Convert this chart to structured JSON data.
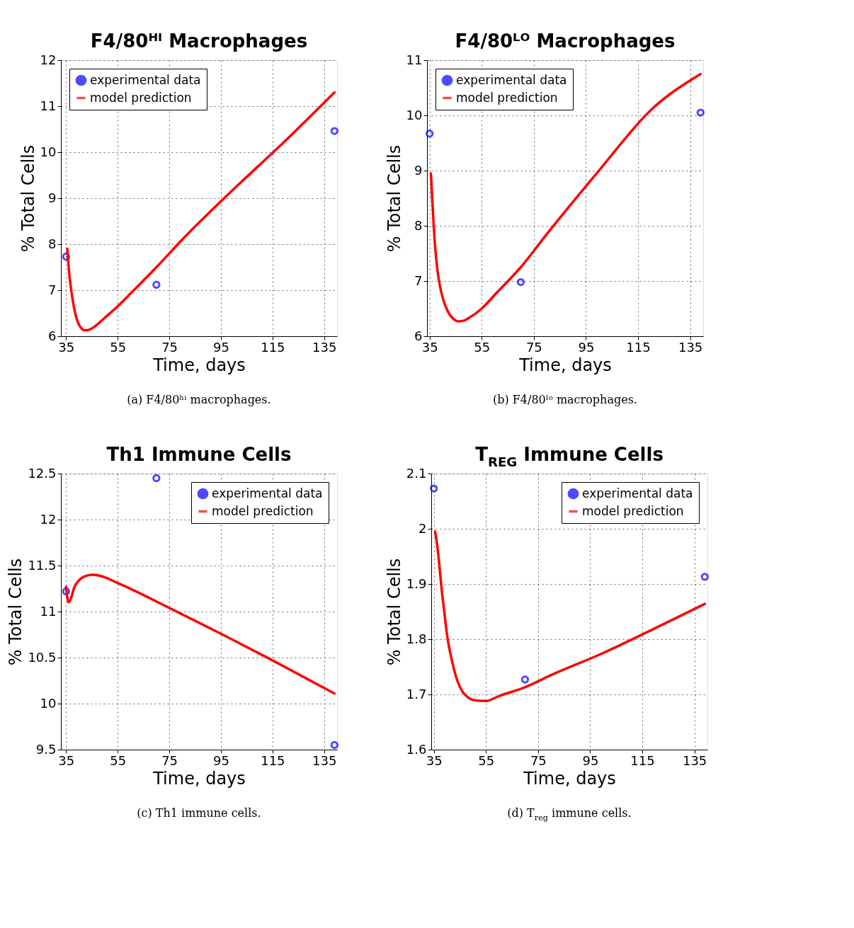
{
  "chart_data": [
    {
      "type": "line",
      "title": "F4/80ᴴᴵ Macrophages",
      "xlabel": "Time, days",
      "ylabel": "% Total Cells",
      "xlim": [
        33,
        140
      ],
      "ylim": [
        6,
        12
      ],
      "xticks": [
        35,
        55,
        75,
        95,
        115,
        135
      ],
      "yticks": [
        6,
        7,
        8,
        9,
        10,
        11,
        12
      ],
      "grid": true,
      "legend": "top left",
      "annotations": [
        "(a) F4/80ʰⁱ macrophages."
      ],
      "series": [
        {
          "name": "experimental data",
          "type": "scatter",
          "marker": "circle",
          "color": "#0000ff",
          "x": [
            35,
            70,
            139
          ],
          "values": [
            7.73,
            7.12,
            10.46
          ]
        },
        {
          "name": "model prediction",
          "marker": "none",
          "color": "#ff0000",
          "x": [
            35.5,
            36,
            37,
            38,
            39,
            40,
            41,
            42,
            43,
            45,
            47,
            50,
            55,
            60,
            70,
            80,
            100,
            120,
            139
          ],
          "values": [
            7.9,
            7.5,
            7.0,
            6.65,
            6.4,
            6.25,
            6.17,
            6.13,
            6.13,
            6.17,
            6.25,
            6.4,
            6.65,
            6.93,
            7.5,
            8.1,
            9.2,
            10.25,
            11.3
          ]
        }
      ]
    },
    {
      "type": "line",
      "title": "F4/80ᴸᴼ Macrophages",
      "xlabel": "Time, days",
      "ylabel": "% Total Cells",
      "xlim": [
        34,
        140
      ],
      "ylim": [
        6,
        11
      ],
      "xticks": [
        35,
        55,
        75,
        95,
        115,
        135
      ],
      "yticks": [
        6,
        7,
        8,
        9,
        10,
        11
      ],
      "grid": true,
      "legend": "top left",
      "annotations": [
        "(b) F4/80ˡᵒ macrophages."
      ],
      "series": [
        {
          "name": "experimental data",
          "type": "scatter",
          "marker": "circle",
          "color": "#0000ff",
          "x": [
            35,
            70,
            139
          ],
          "values": [
            9.67,
            6.98,
            10.05
          ]
        },
        {
          "name": "model prediction",
          "marker": "none",
          "color": "#ff0000",
          "x": [
            35.5,
            36,
            37,
            38,
            39,
            40,
            42,
            44,
            46,
            48,
            50,
            55,
            60,
            70,
            80,
            100,
            120,
            139
          ],
          "values": [
            8.95,
            8.5,
            7.7,
            7.2,
            6.9,
            6.7,
            6.45,
            6.32,
            6.27,
            6.28,
            6.33,
            6.5,
            6.75,
            7.25,
            7.85,
            9.0,
            10.1,
            10.75
          ]
        }
      ]
    },
    {
      "type": "line",
      "title": "Th1 Immune Cells",
      "xlabel": "Time, days",
      "ylabel": "% Total Cells",
      "xlim": [
        33,
        140
      ],
      "ylim": [
        9.5,
        12.5
      ],
      "xticks": [
        35,
        55,
        75,
        95,
        115,
        135
      ],
      "yticks": [
        9.5,
        10,
        10.5,
        11,
        11.5,
        12,
        12.5
      ],
      "grid": true,
      "legend": "top right",
      "annotations": [
        "(c) Th1 immune cells."
      ],
      "series": [
        {
          "name": "experimental data",
          "type": "scatter",
          "marker": "circle",
          "color": "#0000ff",
          "x": [
            35,
            70,
            139
          ],
          "values": [
            11.22,
            12.45,
            9.55
          ]
        },
        {
          "name": "model prediction",
          "marker": "none",
          "color": "#ff0000",
          "x": [
            35,
            35.5,
            36,
            37,
            38,
            40,
            42,
            45,
            48,
            55,
            65,
            75,
            95,
            115,
            139
          ],
          "values": [
            11.27,
            11.15,
            11.1,
            11.15,
            11.25,
            11.34,
            11.38,
            11.4,
            11.39,
            11.31,
            11.18,
            11.04,
            10.76,
            10.47,
            10.11
          ]
        }
      ]
    },
    {
      "type": "line",
      "title": "T$_{REG}$ Immune Cells",
      "xlabel": "Time, days",
      "ylabel": "% Total Cells",
      "xlim": [
        34,
        140
      ],
      "ylim": [
        1.6,
        2.1
      ],
      "xticks": [
        35,
        55,
        75,
        95,
        115,
        135
      ],
      "yticks": [
        1.6,
        1.7,
        1.8,
        1.9,
        2,
        2.1
      ],
      "grid": true,
      "legend": "top right",
      "annotations": [
        "(d) T$_{reg}$ immune cells."
      ],
      "series": [
        {
          "name": "experimental data",
          "type": "scatter",
          "marker": "circle",
          "color": "#0000ff",
          "x": [
            35,
            70,
            139
          ],
          "values": [
            2.073,
            1.727,
            1.913
          ]
        },
        {
          "name": "model prediction",
          "marker": "none",
          "color": "#ff0000",
          "x": [
            35.5,
            36,
            37,
            38,
            39,
            40,
            42,
            44,
            46,
            48,
            50,
            55,
            60,
            70,
            80,
            100,
            120,
            139
          ],
          "values": [
            1.995,
            1.98,
            1.94,
            1.89,
            1.85,
            1.81,
            1.76,
            1.725,
            1.705,
            1.695,
            1.69,
            1.688,
            1.697,
            1.713,
            1.735,
            1.775,
            1.82,
            1.864
          ]
        }
      ]
    }
  ]
}
